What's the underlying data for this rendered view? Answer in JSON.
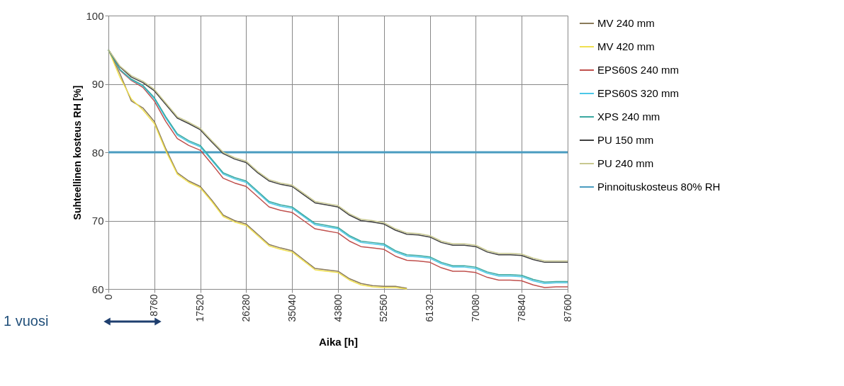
{
  "chart_data": {
    "type": "line",
    "xlabel": "Aika [h]",
    "ylabel": "Suhteellinen kosteus RH [%]",
    "xlim": [
      0,
      87600
    ],
    "ylim": [
      60,
      100
    ],
    "xticks": [
      0,
      8760,
      17520,
      26280,
      35040,
      43800,
      52560,
      61320,
      70080,
      78840,
      87600
    ],
    "yticks": [
      60,
      70,
      80,
      90,
      100
    ],
    "grid": true,
    "legend": "right",
    "marker": "none",
    "line_style": "solid",
    "x": [
      0,
      2190,
      4380,
      6570,
      8760,
      10950,
      13140,
      15330,
      17520,
      19710,
      21900,
      24090,
      26280,
      28470,
      30660,
      32850,
      35040,
      37230,
      39420,
      41610,
      43800,
      45990,
      48180,
      50370,
      52560,
      54750,
      56940,
      59130,
      61320,
      63510,
      65700,
      67890,
      70080,
      72270,
      74460,
      76650,
      78840,
      81030,
      83220,
      85410,
      87600
    ],
    "series": [
      {
        "name": "MV 240 mm",
        "color": "#8a7a5a",
        "values": [
          95,
          91.5,
          87.5,
          86.5,
          84.5,
          80.5,
          77,
          75.8,
          75,
          73,
          70.8,
          70,
          69.5,
          68,
          66.5,
          66,
          65.6,
          64.3,
          63,
          62.8,
          62.6,
          61.5,
          60.8,
          60.5,
          60.4,
          60.4,
          60.1,
          null,
          null,
          null,
          null,
          null,
          null,
          null,
          null,
          null,
          null,
          null,
          null,
          null,
          null
        ]
      },
      {
        "name": "MV 420 mm",
        "color": "#f0e050",
        "values": [
          95,
          91,
          87.8,
          86.2,
          84.2,
          80.2,
          76.8,
          75.6,
          74.8,
          72.8,
          70.6,
          69.8,
          69.3,
          67.8,
          66.3,
          65.8,
          65.4,
          64.1,
          62.8,
          62.6,
          62.4,
          61.3,
          60.6,
          60.3,
          60.2,
          60.2,
          60,
          null,
          null,
          null,
          null,
          null,
          null,
          null,
          null,
          null,
          null,
          null,
          null,
          null,
          null
        ]
      },
      {
        "name": "EPS60S 240 mm",
        "color": "#c0504d",
        "values": [
          95,
          92,
          90.5,
          89.5,
          87.5,
          84.5,
          82,
          81,
          80.3,
          78.3,
          76.2,
          75.5,
          75,
          73.5,
          72,
          71.5,
          71.2,
          70,
          68.8,
          68.5,
          68.2,
          67,
          66.2,
          66,
          65.8,
          64.8,
          64.2,
          64.1,
          63.9,
          63.1,
          62.6,
          62.6,
          62.4,
          61.7,
          61.3,
          61.3,
          61.2,
          60.6,
          60.2,
          60.3,
          60.3
        ]
      },
      {
        "name": "EPS60S 320 mm",
        "color": "#4bc8e8",
        "values": [
          95,
          92.1,
          90.6,
          89.7,
          87.8,
          85,
          82.5,
          81.5,
          80.8,
          78.8,
          76.8,
          76.1,
          75.6,
          74.1,
          72.6,
          72.1,
          71.8,
          70.6,
          69.4,
          69.1,
          68.8,
          67.6,
          66.8,
          66.6,
          66.4,
          65.4,
          64.8,
          64.7,
          64.5,
          63.7,
          63.2,
          63.2,
          63,
          62.3,
          61.9,
          61.9,
          61.8,
          61.2,
          60.8,
          60.9,
          60.9
        ]
      },
      {
        "name": "XPS 240 mm",
        "color": "#3aa8a0",
        "values": [
          95,
          92.1,
          90.7,
          89.8,
          88,
          85.2,
          82.7,
          81.7,
          81,
          79,
          77,
          76.3,
          75.8,
          74.3,
          72.8,
          72.3,
          72,
          70.8,
          69.6,
          69.3,
          69,
          67.8,
          67,
          66.8,
          66.6,
          65.6,
          65,
          64.9,
          64.7,
          63.9,
          63.4,
          63.4,
          63.2,
          62.5,
          62.1,
          62.1,
          62,
          61.4,
          61,
          61.1,
          61.1
        ]
      },
      {
        "name": "PU 150 mm",
        "color": "#404040",
        "values": [
          95,
          92.5,
          91,
          90.2,
          89,
          87,
          85,
          84.2,
          83.3,
          81.5,
          79.8,
          79,
          78.5,
          77,
          75.8,
          75.3,
          75,
          73.8,
          72.6,
          72.3,
          72,
          70.8,
          70,
          69.8,
          69.5,
          68.6,
          68,
          67.9,
          67.6,
          66.8,
          66.4,
          66.4,
          66.2,
          65.4,
          65,
          65,
          64.9,
          64.3,
          63.9,
          63.9,
          63.9
        ]
      },
      {
        "name": "PU 240 mm",
        "color": "#c8c890",
        "values": [
          95,
          92.6,
          91.2,
          90.4,
          89.2,
          87.2,
          85.2,
          84.4,
          83.5,
          81.7,
          80,
          79.2,
          78.7,
          77.2,
          76,
          75.5,
          75.2,
          74,
          72.8,
          72.5,
          72.2,
          71,
          70.2,
          70,
          69.7,
          68.8,
          68.2,
          68.1,
          67.8,
          67,
          66.6,
          66.6,
          66.4,
          65.6,
          65.2,
          65.2,
          65.1,
          64.5,
          64.1,
          64.1,
          64.1
        ]
      }
    ],
    "ref_lines": [
      {
        "axis": "y",
        "value": 80,
        "label": "Pinnoituskosteus 80% RH",
        "color": "#4a9cc0",
        "line_style": "solid"
      }
    ],
    "annotations": [
      "1 vuosi"
    ]
  }
}
